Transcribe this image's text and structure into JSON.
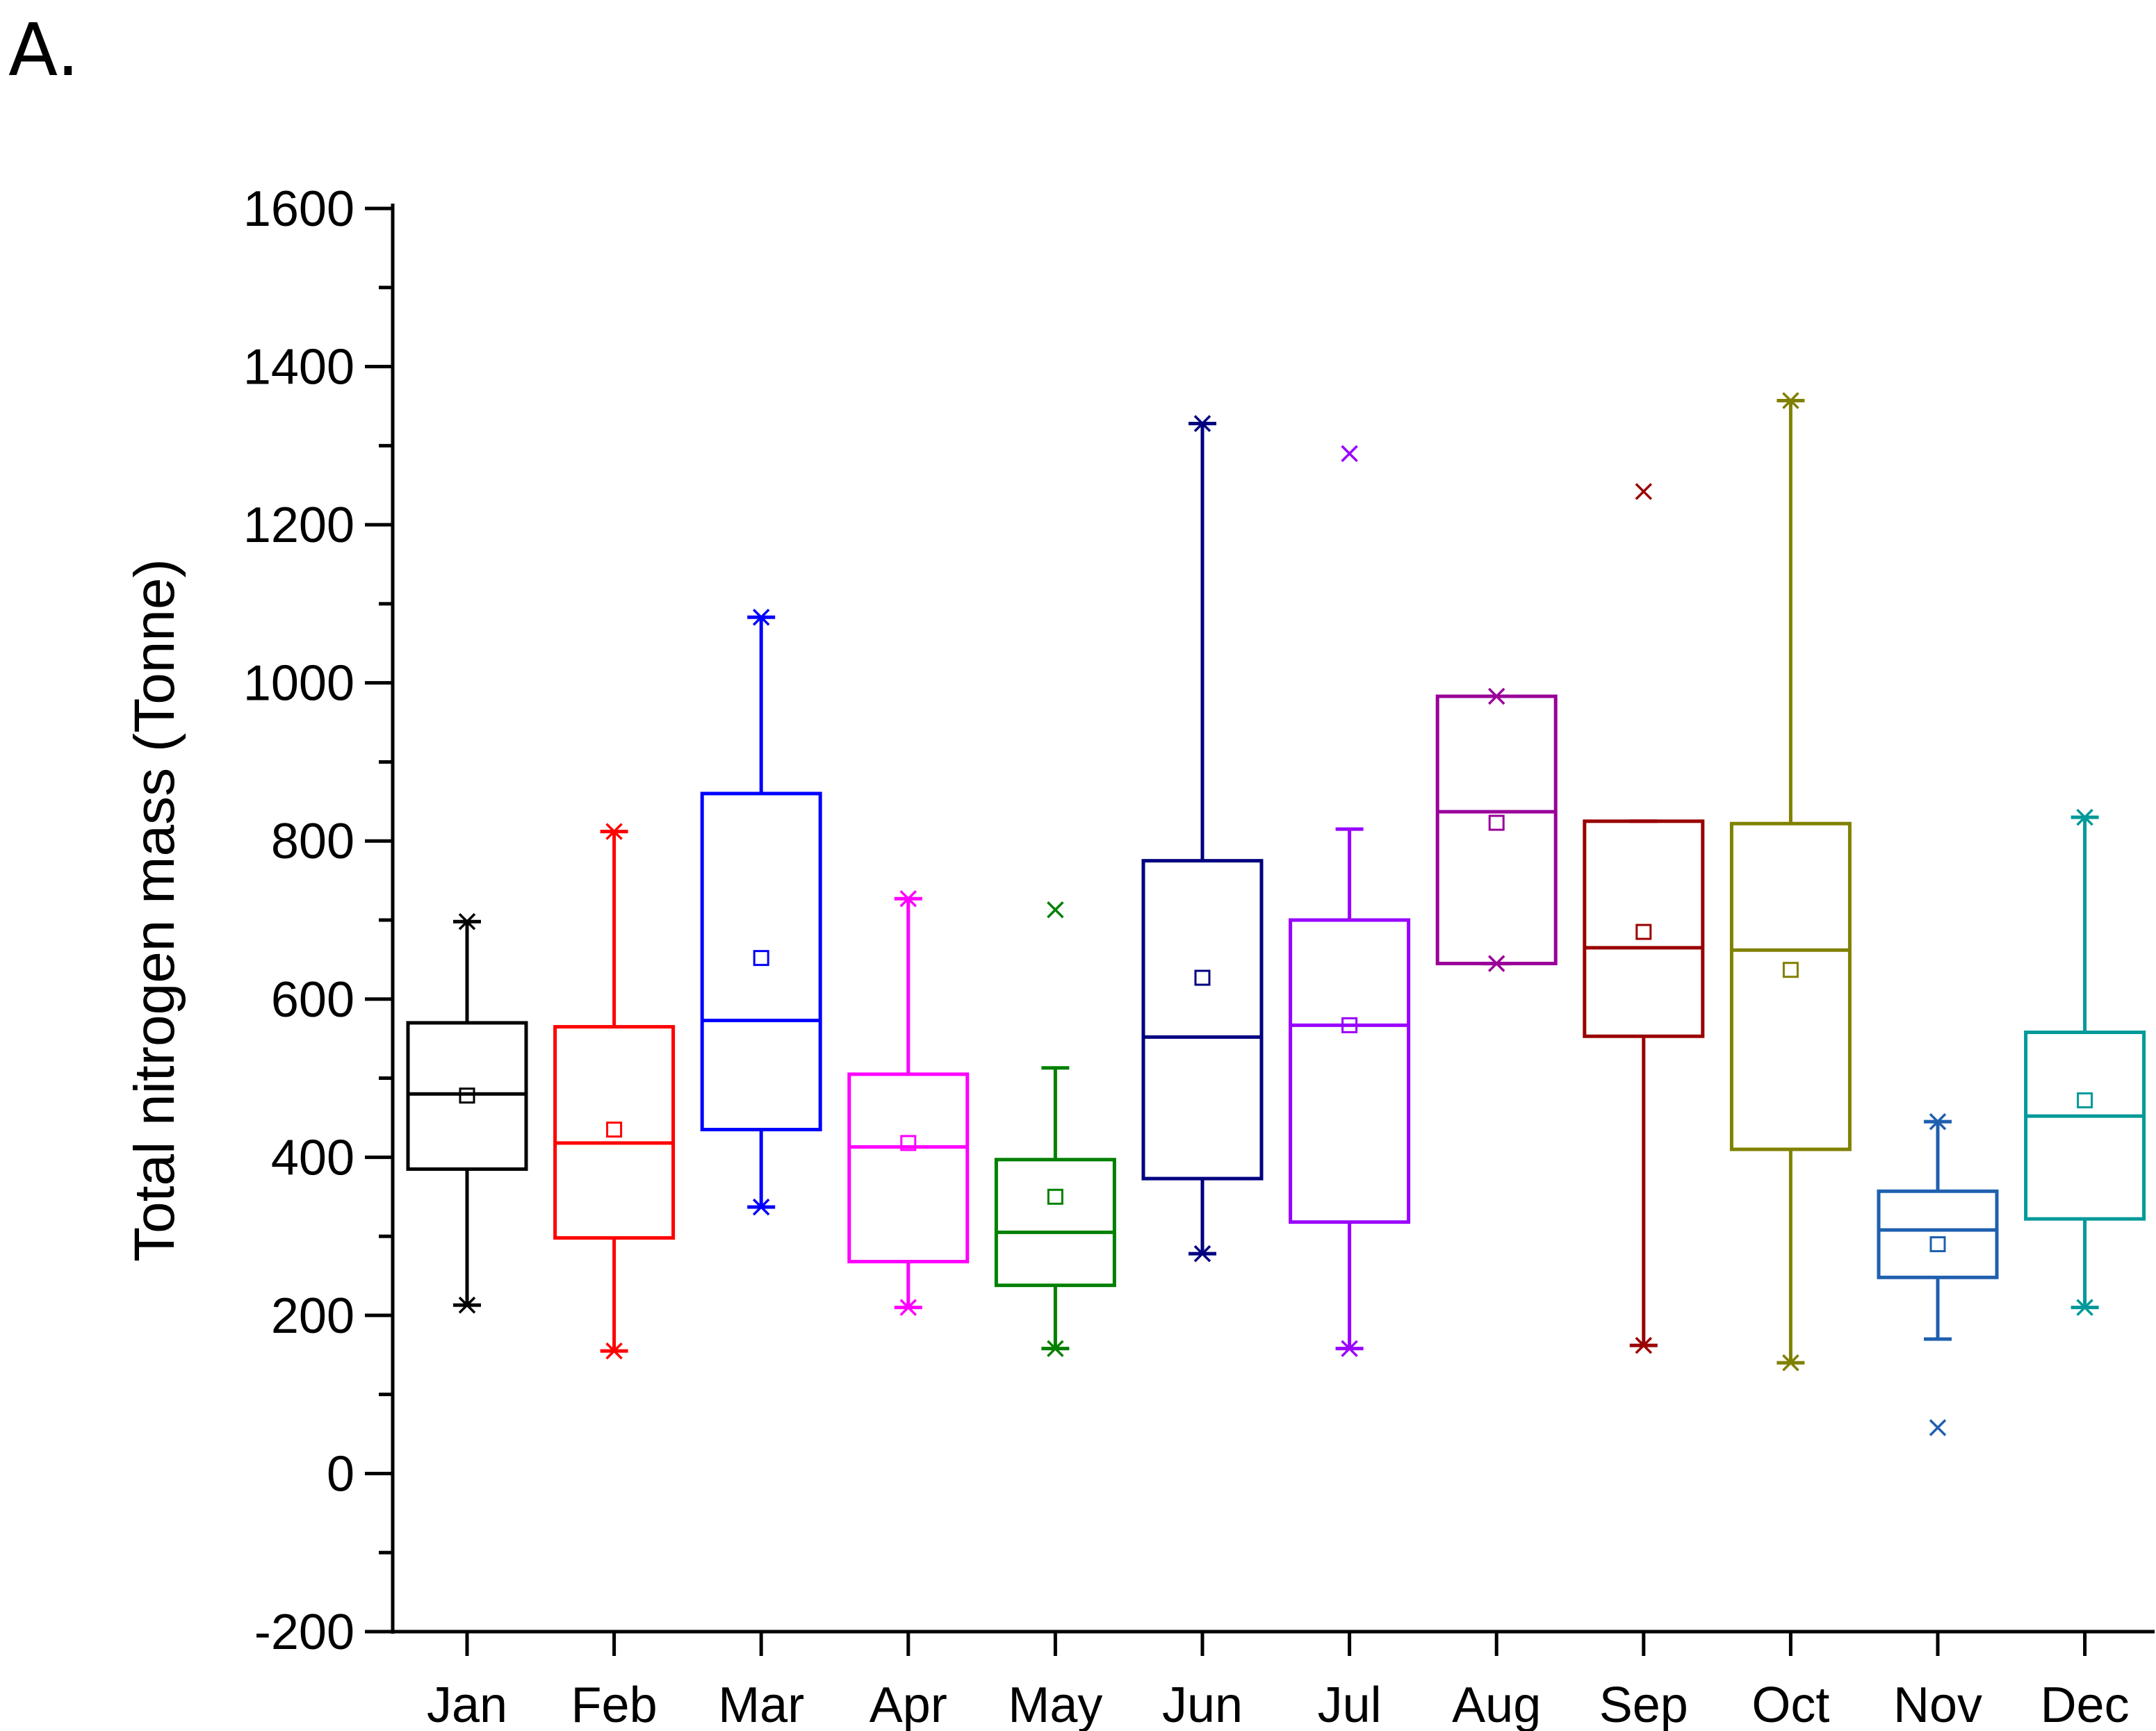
{
  "panel_label": "A.",
  "chart_data": {
    "type": "box",
    "title": "",
    "xlabel": "",
    "ylabel": "Total nitrogen mass (Tonne)",
    "ylim": [
      -200,
      1600
    ],
    "yticks": [
      -200,
      0,
      200,
      400,
      600,
      800,
      1000,
      1200,
      1400,
      1600
    ],
    "ytick_labels": [
      "-200",
      "0",
      "200",
      "400",
      "600",
      "800",
      "1000",
      "1200",
      "1400",
      "1600"
    ],
    "categories": [
      "Jan",
      "Feb",
      "Mar",
      "Apr",
      "May",
      "Jun",
      "Jul",
      "Aug",
      "Sep",
      "Oct",
      "Nov",
      "Dec"
    ],
    "boxes": [
      {
        "name": "Jan",
        "color": "#000000",
        "q1": 385,
        "median": 480,
        "q3": 570,
        "mean": 478,
        "whisker_low": 213,
        "whisker_high": 698,
        "extremes": [
          213,
          698
        ],
        "outliers": []
      },
      {
        "name": "Feb",
        "color": "#FF0000",
        "q1": 298,
        "median": 418,
        "q3": 565,
        "mean": 435,
        "whisker_low": 155,
        "whisker_high": 812,
        "extremes": [
          155,
          812
        ],
        "outliers": []
      },
      {
        "name": "Mar",
        "color": "#0000FF",
        "q1": 435,
        "median": 573,
        "q3": 860,
        "mean": 652,
        "whisker_low": 337,
        "whisker_high": 1083,
        "extremes": [
          337,
          1083
        ],
        "outliers": []
      },
      {
        "name": "Apr",
        "color": "#FF00FF",
        "q1": 268,
        "median": 413,
        "q3": 505,
        "mean": 418,
        "whisker_low": 210,
        "whisker_high": 727,
        "extremes": [
          210,
          727
        ],
        "outliers": []
      },
      {
        "name": "May",
        "color": "#008000",
        "q1": 238,
        "median": 305,
        "q3": 397,
        "mean": 350,
        "whisker_low": 158,
        "whisker_high": 513,
        "extremes": [
          158
        ],
        "outliers": [
          713
        ]
      },
      {
        "name": "Jun",
        "color": "#000080",
        "q1": 373,
        "median": 552,
        "q3": 775,
        "mean": 627,
        "whisker_low": 278,
        "whisker_high": 1328,
        "extremes": [
          278,
          1328
        ],
        "outliers": []
      },
      {
        "name": "Jul",
        "color": "#9900FF",
        "q1": 318,
        "median": 567,
        "q3": 700,
        "mean": 567,
        "whisker_low": 158,
        "whisker_high": 815,
        "extremes": [
          158
        ],
        "outliers": [
          1290
        ]
      },
      {
        "name": "Aug",
        "color": "#990099",
        "q1": 645,
        "median": 837,
        "q3": 983,
        "mean": 823,
        "whisker_low": 645,
        "whisker_high": 983,
        "extremes": [
          645,
          983
        ],
        "outliers": []
      },
      {
        "name": "Sep",
        "color": "#990000",
        "q1": 553,
        "median": 665,
        "q3": 825,
        "mean": 685,
        "whisker_low": 162,
        "whisker_high": 825,
        "extremes": [
          162
        ],
        "outliers": [
          1242
        ]
      },
      {
        "name": "Oct",
        "color": "#808000",
        "q1": 410,
        "median": 662,
        "q3": 822,
        "mean": 637,
        "whisker_low": 140,
        "whisker_high": 1357,
        "extremes": [
          140,
          1357
        ],
        "outliers": []
      },
      {
        "name": "Nov",
        "color": "#1F5FAF",
        "q1": 248,
        "median": 308,
        "q3": 357,
        "mean": 290,
        "whisker_low": 170,
        "whisker_high": 445,
        "extremes": [
          445
        ],
        "outliers": [
          58
        ]
      },
      {
        "name": "Dec",
        "color": "#009999",
        "q1": 322,
        "median": 452,
        "q3": 558,
        "mean": 472,
        "whisker_low": 210,
        "whisker_high": 830,
        "extremes": [
          210,
          830
        ],
        "outliers": []
      }
    ]
  }
}
